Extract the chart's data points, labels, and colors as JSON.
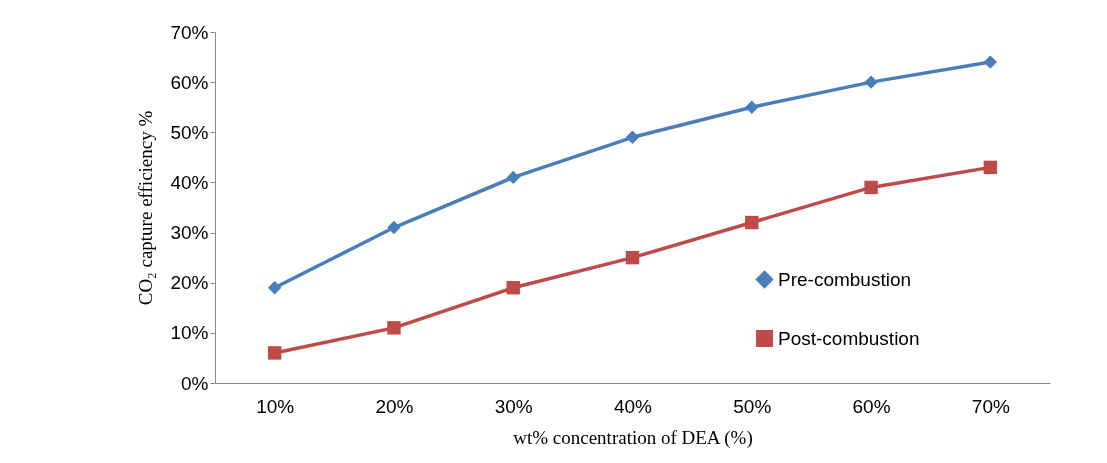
{
  "chart_data": {
    "type": "line",
    "xlabel": "wt% concentration of DEA (%)",
    "ylabel": "CO₂ capture efficiency %",
    "categories": [
      "10%",
      "20%",
      "30%",
      "40%",
      "50%",
      "60%",
      "70%"
    ],
    "ylim": [
      0,
      70
    ],
    "yticks": [
      {
        "value": 0,
        "label": "0%"
      },
      {
        "value": 10,
        "label": "10%"
      },
      {
        "value": 20,
        "label": "20%"
      },
      {
        "value": 30,
        "label": "30%"
      },
      {
        "value": 40,
        "label": "40%"
      },
      {
        "value": 50,
        "label": "50%"
      },
      {
        "value": 60,
        "label": "60%"
      },
      {
        "value": 70,
        "label": "70%"
      }
    ],
    "grid": false,
    "legend": "right",
    "series": [
      {
        "name": "Pre-combustion",
        "color": "#4a7ebb",
        "marker": "diamond",
        "values": [
          19,
          31,
          41,
          49,
          55,
          60,
          64
        ]
      },
      {
        "name": "Post-combustion",
        "color": "#be4b48",
        "marker": "square",
        "values": [
          6,
          11,
          19,
          25,
          32,
          39,
          43
        ]
      }
    ]
  }
}
